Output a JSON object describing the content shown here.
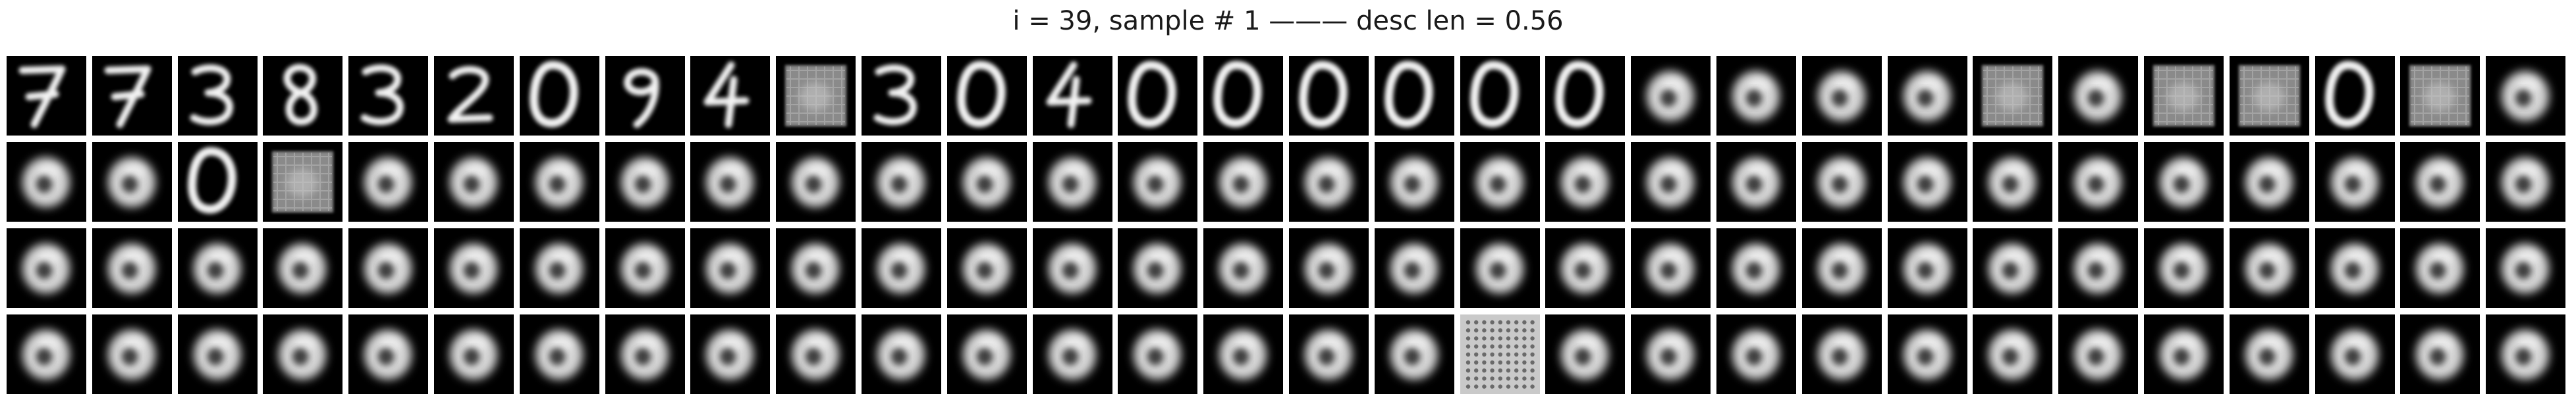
{
  "title": "i = 39, sample # 1 ——— desc len = 0.56",
  "grid": {
    "rows": [
      [
        "7",
        "7",
        "3",
        "8",
        "3",
        "2",
        "0",
        "9",
        "4",
        "noise",
        "3",
        "0",
        "4",
        "0",
        "0",
        "0",
        "0",
        "0",
        "0",
        "blob",
        "blob",
        "blob",
        "blob",
        "noise",
        "blob",
        "noise",
        "noise",
        "0",
        "noise",
        "blob"
      ],
      [
        "blob",
        "blob",
        "0",
        "noise",
        "blob",
        "blob",
        "blob",
        "blob",
        "blob",
        "blob",
        "blob",
        "blob",
        "blob",
        "blob",
        "blob",
        "blob",
        "blob",
        "blob",
        "blob",
        "blob",
        "blob",
        "blob",
        "blob",
        "blob",
        "blob",
        "blob",
        "blob",
        "blob",
        "blob",
        "blob"
      ],
      [
        "blob",
        "blob",
        "blob",
        "blob",
        "blob",
        "blob",
        "blob",
        "blob",
        "blob",
        "blob",
        "blob",
        "blob",
        "blob",
        "blob",
        "blob",
        "blob",
        "blob",
        "blob",
        "blob",
        "blob",
        "blob",
        "blob",
        "blob",
        "blob",
        "blob",
        "blob",
        "blob",
        "blob",
        "blob",
        "blob"
      ],
      [
        "blob",
        "blob",
        "blob",
        "blob",
        "blob",
        "blob",
        "blob",
        "blob",
        "blob",
        "blob",
        "blob",
        "blob",
        "blob",
        "blob",
        "blob",
        "blob",
        "blob",
        "grid",
        "blob",
        "blob",
        "blob",
        "blob",
        "blob",
        "blob",
        "blob",
        "blob",
        "blob",
        "blob",
        "blob",
        "blob"
      ]
    ]
  }
}
